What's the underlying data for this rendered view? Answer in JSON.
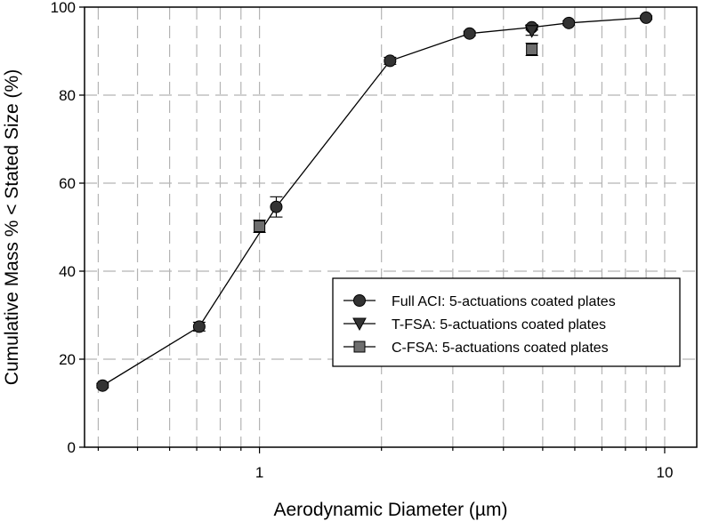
{
  "chart_data": {
    "type": "scatter",
    "xlabel": "Aerodynamic Diameter (µm)",
    "ylabel": "Cumulative Mass % < Stated Size (%)",
    "xscale": "log",
    "xlim": [
      0.37,
      12.0
    ],
    "ylim": [
      0,
      100
    ],
    "x_ticks": [
      {
        "value": 1,
        "label": "1"
      },
      {
        "value": 10,
        "label": "10"
      }
    ],
    "y_ticks": [
      {
        "value": 0,
        "label": "0"
      },
      {
        "value": 20,
        "label": "20"
      },
      {
        "value": 40,
        "label": "40"
      },
      {
        "value": 60,
        "label": "60"
      },
      {
        "value": 80,
        "label": "80"
      },
      {
        "value": 100,
        "label": "100"
      }
    ],
    "grid": true,
    "legend_position": "center-right",
    "series": [
      {
        "name": "Full ACI: 5-actuations coated plates",
        "marker": "circle",
        "color": "#333333",
        "connected": true,
        "points": [
          {
            "x": 0.41,
            "y": 14.0,
            "err": 0.5
          },
          {
            "x": 0.71,
            "y": 27.4,
            "err": 1.0
          },
          {
            "x": 1.1,
            "y": 54.6,
            "err": 2.3
          },
          {
            "x": 2.1,
            "y": 87.8,
            "err": 0.8
          },
          {
            "x": 3.3,
            "y": 94.0,
            "err": 0.5
          },
          {
            "x": 4.7,
            "y": 95.4,
            "err": 0.6
          },
          {
            "x": 5.8,
            "y": 96.4,
            "err": 0.5
          },
          {
            "x": 9.0,
            "y": 97.6,
            "err": 0.4
          }
        ]
      },
      {
        "name": "T-FSA: 5-actuations coated plates",
        "marker": "triangle-down",
        "color": "#333333",
        "connected": false,
        "points": [
          {
            "x": 4.7,
            "y": 94.6,
            "err": 1.0
          }
        ]
      },
      {
        "name": "C-FSA: 5-actuations coated plates",
        "marker": "square",
        "color": "#6e6e6e",
        "connected": false,
        "points": [
          {
            "x": 1.0,
            "y": 50.2,
            "err": 1.4
          },
          {
            "x": 4.7,
            "y": 90.4,
            "err": 1.4
          }
        ]
      }
    ]
  }
}
